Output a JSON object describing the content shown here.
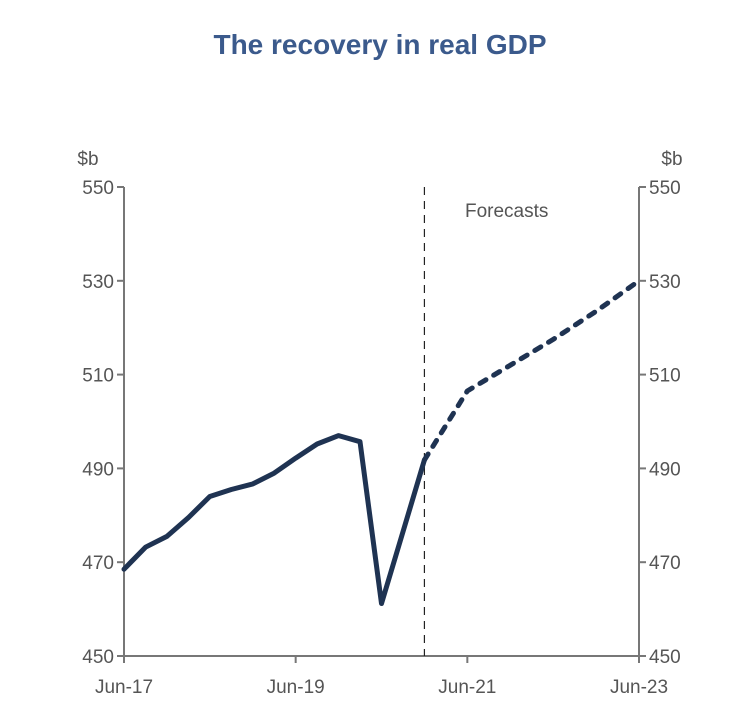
{
  "chart_data": {
    "type": "line",
    "title": "The recovery in real GDP",
    "unit_left": "$b",
    "unit_right": "$b",
    "ylim": [
      450,
      550
    ],
    "yticks": [
      "450",
      "470",
      "490",
      "510",
      "530",
      "550"
    ],
    "xlim": [
      "2017-06",
      "2023-06"
    ],
    "xtick_labels": [
      "Jun-17",
      "Jun-19",
      "Jun-21",
      "Jun-23"
    ],
    "xticks": [
      "2017-06",
      "2019-06",
      "2021-06",
      "2023-06"
    ],
    "forecast_start": "2020-12",
    "annotation": "Forecasts",
    "colors": {
      "line": "#1f3352",
      "title": "#3b5a8c",
      "axis": "#777777",
      "text": "#555555"
    },
    "series": [
      {
        "style": "solid",
        "points": [
          [
            "2017-06",
            468.5
          ],
          [
            "2017-09",
            473.2
          ],
          [
            "2017-12",
            475.5
          ],
          [
            "2018-03",
            479.5
          ],
          [
            "2018-06",
            484.0
          ],
          [
            "2018-09",
            485.5
          ],
          [
            "2018-12",
            486.7
          ],
          [
            "2019-03",
            489.0
          ],
          [
            "2019-06",
            492.2
          ],
          [
            "2019-09",
            495.2
          ],
          [
            "2019-12",
            497.0
          ],
          [
            "2020-03",
            495.7
          ],
          [
            "2020-06",
            461.2
          ],
          [
            "2020-09",
            476.5
          ],
          [
            "2020-12",
            491.8
          ]
        ]
      },
      {
        "style": "dotted",
        "points": [
          [
            "2020-12",
            491.8
          ],
          [
            "2021-06",
            506.5
          ],
          [
            "2021-12",
            512.0
          ],
          [
            "2022-06",
            517.5
          ],
          [
            "2022-12",
            523.5
          ],
          [
            "2023-06",
            530.0
          ]
        ]
      }
    ]
  }
}
